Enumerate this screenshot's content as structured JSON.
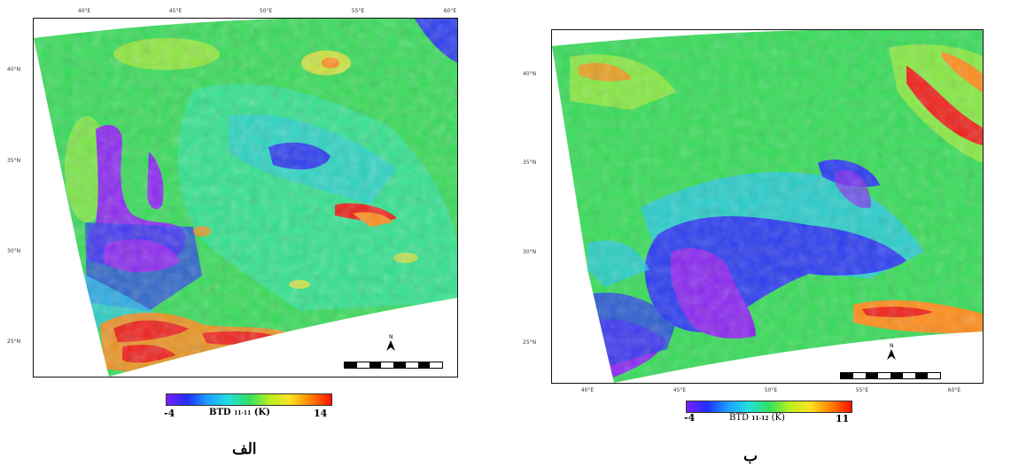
{
  "panels": [
    {
      "id": "a",
      "caption": "الف",
      "colorbar": {
        "min": "-4",
        "max": "14",
        "title_main": "BTD",
        "title_sub": "11-11",
        "title_unit": "(K)",
        "colors": [
          "#7a1fff",
          "#2030ff",
          "#1aa0ff",
          "#22e0e0",
          "#30e060",
          "#b8f020",
          "#ffe020",
          "#ff8000",
          "#ff1000"
        ]
      },
      "top_ticks": [
        "40°E",
        "45°E",
        "50°E",
        "55°E",
        "60°E"
      ],
      "side_ticks": [
        "40°N",
        "35°N",
        "30°N",
        "25°N"
      ]
    },
    {
      "id": "b",
      "caption": "ب",
      "colorbar": {
        "min": "-4",
        "max": "11",
        "title_main": "BTD",
        "title_sub": "11-12",
        "title_unit": "(K)",
        "colors": [
          "#7a1fff",
          "#2030ff",
          "#1aa0ff",
          "#22e0e0",
          "#30e060",
          "#b8f020",
          "#ffe020",
          "#ff8000",
          "#ff1000"
        ]
      },
      "top_ticks": [
        "40°E",
        "45°E",
        "50°E",
        "55°E",
        "60°E"
      ],
      "side_ticks": [
        "40°N",
        "35°N",
        "30°N",
        "25°N"
      ]
    }
  ],
  "palette": {
    "violet": "#8a28f0",
    "blue": "#2b3df0",
    "cyan": "#27c8f0",
    "aqua": "#3ee6d8",
    "green": "#32e04a",
    "lime": "#a8ee3a",
    "yellow": "#f2e53a",
    "orange": "#ff8c1a",
    "red": "#f0201a"
  }
}
